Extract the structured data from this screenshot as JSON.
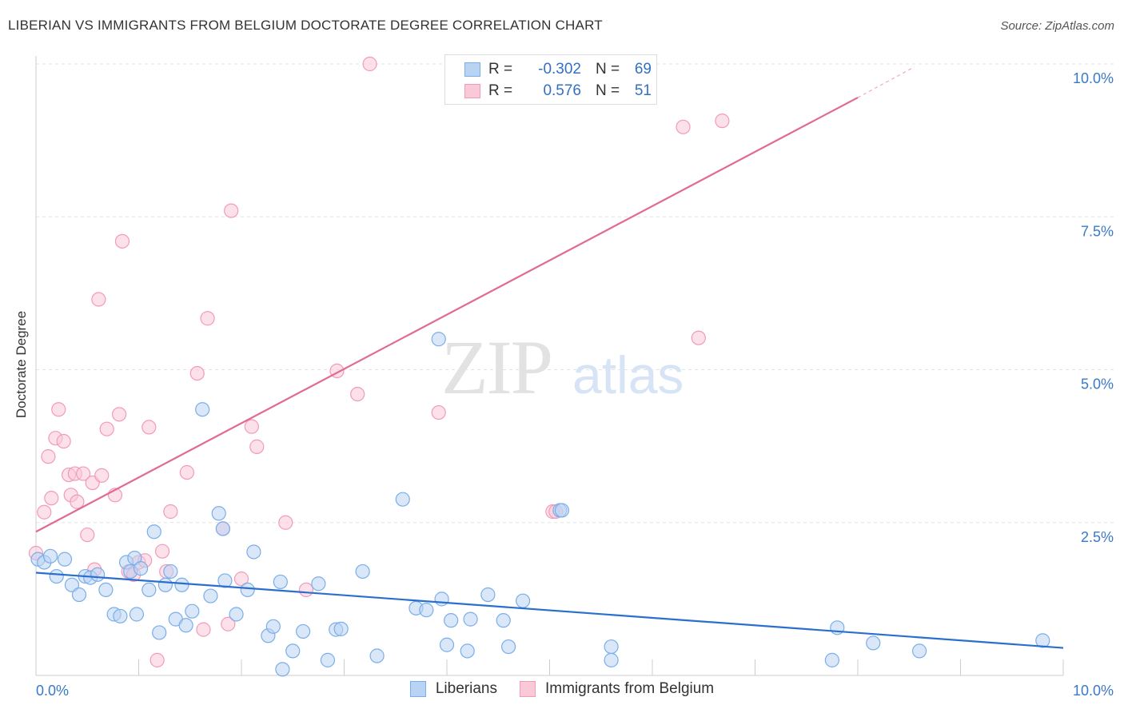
{
  "header": {
    "title": "LIBERIAN VS IMMIGRANTS FROM BELGIUM DOCTORATE DEGREE CORRELATION CHART",
    "source": "Source: ZipAtlas.com"
  },
  "stats": {
    "r_label": "R =",
    "n_label": "N =",
    "series": [
      {
        "name": "Liberians",
        "r": "-0.302",
        "n": "69",
        "color": "#7aaee8",
        "fill": "#b9d3f4",
        "value_color": "#3370c4"
      },
      {
        "name": "Immigrants from Belgium",
        "r": "0.576",
        "n": "51",
        "color": "#f29bb7",
        "fill": "#f9c9d8",
        "value_color": "#3370c4"
      }
    ]
  },
  "legend": {
    "liberians": "Liberians",
    "belgium": "Immigrants from Belgium"
  },
  "watermark": {
    "zip": "ZIP",
    "atlas": "atlas"
  },
  "chart_data": {
    "type": "scatter",
    "title": "LIBERIAN VS IMMIGRANTS FROM BELGIUM DOCTORATE DEGREE CORRELATION CHART",
    "xlabel": "",
    "ylabel": "Doctorate Degree",
    "xlim": [
      0,
      10
    ],
    "ylim": [
      0,
      10.3
    ],
    "x_tick_labels": [
      {
        "value": 0,
        "label": "0.0%"
      },
      {
        "value": 10,
        "label": "10.0%"
      }
    ],
    "y_tick_labels": [
      {
        "value": 2.5,
        "label": "2.5%"
      },
      {
        "value": 5.0,
        "label": "5.0%"
      },
      {
        "value": 7.5,
        "label": "7.5%"
      },
      {
        "value": 10.0,
        "label": "10.0%"
      }
    ],
    "grid": true,
    "series": [
      {
        "name": "Liberians",
        "color": "#7aaee8",
        "fill": "#b9d3f4",
        "trend": {
          "x": [
            0,
            10
          ],
          "y": [
            1.68,
            0.45
          ],
          "color": "#2a6fcf"
        },
        "points": [
          [
            0.02,
            1.9
          ],
          [
            0.08,
            1.85
          ],
          [
            0.14,
            1.95
          ],
          [
            0.2,
            1.62
          ],
          [
            0.28,
            1.9
          ],
          [
            0.35,
            1.48
          ],
          [
            0.42,
            1.32
          ],
          [
            0.48,
            1.62
          ],
          [
            0.53,
            1.6
          ],
          [
            0.6,
            1.65
          ],
          [
            0.68,
            1.4
          ],
          [
            0.76,
            1.0
          ],
          [
            0.82,
            0.97
          ],
          [
            0.88,
            1.85
          ],
          [
            0.92,
            1.7
          ],
          [
            0.96,
            1.92
          ],
          [
            0.98,
            1.0
          ],
          [
            1.02,
            1.75
          ],
          [
            1.1,
            1.4
          ],
          [
            1.15,
            2.35
          ],
          [
            1.2,
            0.7
          ],
          [
            1.26,
            1.48
          ],
          [
            1.31,
            1.7
          ],
          [
            1.36,
            0.92
          ],
          [
            1.42,
            1.48
          ],
          [
            1.46,
            0.82
          ],
          [
            1.52,
            1.05
          ],
          [
            1.62,
            4.35
          ],
          [
            1.7,
            1.3
          ],
          [
            1.78,
            2.65
          ],
          [
            1.82,
            2.4
          ],
          [
            1.84,
            1.55
          ],
          [
            1.95,
            1.0
          ],
          [
            2.06,
            1.4
          ],
          [
            2.12,
            2.02
          ],
          [
            2.26,
            0.65
          ],
          [
            2.31,
            0.8
          ],
          [
            2.38,
            1.53
          ],
          [
            2.4,
            0.1
          ],
          [
            2.5,
            0.4
          ],
          [
            2.6,
            0.72
          ],
          [
            2.75,
            1.5
          ],
          [
            2.84,
            0.25
          ],
          [
            2.92,
            0.75
          ],
          [
            2.97,
            0.76
          ],
          [
            3.18,
            1.7
          ],
          [
            3.32,
            0.32
          ],
          [
            3.57,
            2.88
          ],
          [
            3.7,
            1.1
          ],
          [
            3.8,
            1.07
          ],
          [
            3.92,
            5.5
          ],
          [
            3.95,
            1.25
          ],
          [
            4.0,
            0.5
          ],
          [
            4.04,
            0.9
          ],
          [
            4.2,
            0.4
          ],
          [
            4.23,
            0.92
          ],
          [
            4.4,
            1.32
          ],
          [
            4.55,
            0.9
          ],
          [
            4.6,
            0.47
          ],
          [
            4.74,
            1.22
          ],
          [
            5.1,
            2.7
          ],
          [
            5.12,
            2.7
          ],
          [
            5.6,
            0.47
          ],
          [
            5.6,
            0.25
          ],
          [
            7.75,
            0.25
          ],
          [
            7.8,
            0.78
          ],
          [
            8.15,
            0.53
          ],
          [
            8.6,
            0.4
          ],
          [
            9.8,
            0.57
          ]
        ]
      },
      {
        "name": "Immigrants from Belgium",
        "color": "#f29bb7",
        "fill": "#f9c9d8",
        "trend": {
          "x": [
            0,
            8.0
          ],
          "y": [
            2.35,
            9.45
          ],
          "color": "#e06a93"
        },
        "trend_extension": {
          "x": [
            8.0,
            8.55
          ],
          "y": [
            9.45,
            9.95
          ]
        },
        "points": [
          [
            0.0,
            2.0
          ],
          [
            0.08,
            2.67
          ],
          [
            0.12,
            3.58
          ],
          [
            0.15,
            2.9
          ],
          [
            0.19,
            3.88
          ],
          [
            0.22,
            4.35
          ],
          [
            0.27,
            3.83
          ],
          [
            0.32,
            3.28
          ],
          [
            0.34,
            2.95
          ],
          [
            0.38,
            3.3
          ],
          [
            0.4,
            2.84
          ],
          [
            0.46,
            3.3
          ],
          [
            0.5,
            2.3
          ],
          [
            0.55,
            3.15
          ],
          [
            0.57,
            1.73
          ],
          [
            0.61,
            6.15
          ],
          [
            0.64,
            3.27
          ],
          [
            0.69,
            4.03
          ],
          [
            0.77,
            2.95
          ],
          [
            0.81,
            4.27
          ],
          [
            0.84,
            7.1
          ],
          [
            0.9,
            1.7
          ],
          [
            0.95,
            1.65
          ],
          [
            1.0,
            1.85
          ],
          [
            1.06,
            1.88
          ],
          [
            1.1,
            4.06
          ],
          [
            1.18,
            0.25
          ],
          [
            1.23,
            2.03
          ],
          [
            1.27,
            1.7
          ],
          [
            1.31,
            2.68
          ],
          [
            1.47,
            3.32
          ],
          [
            1.57,
            4.94
          ],
          [
            1.63,
            0.75
          ],
          [
            1.67,
            5.84
          ],
          [
            1.82,
            2.4
          ],
          [
            1.87,
            0.84
          ],
          [
            1.9,
            7.6
          ],
          [
            2.0,
            1.58
          ],
          [
            2.1,
            4.07
          ],
          [
            2.15,
            3.74
          ],
          [
            2.43,
            2.5
          ],
          [
            2.63,
            1.4
          ],
          [
            2.93,
            4.98
          ],
          [
            3.13,
            4.6
          ],
          [
            3.25,
            10.0
          ],
          [
            3.92,
            4.3
          ],
          [
            5.03,
            2.68
          ],
          [
            5.06,
            2.68
          ],
          [
            6.3,
            8.97
          ],
          [
            6.45,
            5.52
          ],
          [
            6.68,
            9.07
          ]
        ]
      }
    ]
  }
}
